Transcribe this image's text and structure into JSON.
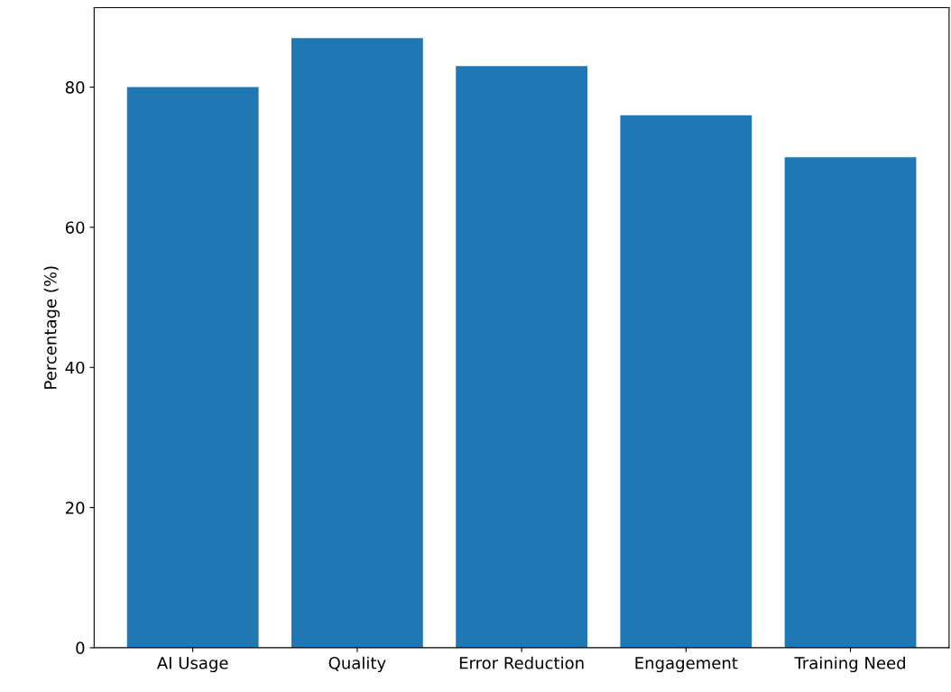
{
  "chart_data": {
    "type": "bar",
    "ylabel": "Percentage (%)",
    "categories": [
      "AI Usage",
      "Quality",
      "Error Reduction",
      "Engagement",
      "Training Need"
    ],
    "values": [
      80,
      87,
      83,
      76,
      70
    ],
    "color": "#1f77b4",
    "ylim": [
      0,
      91.35
    ],
    "yticks": [
      0,
      20,
      40,
      60,
      80
    ],
    "grid": false
  }
}
